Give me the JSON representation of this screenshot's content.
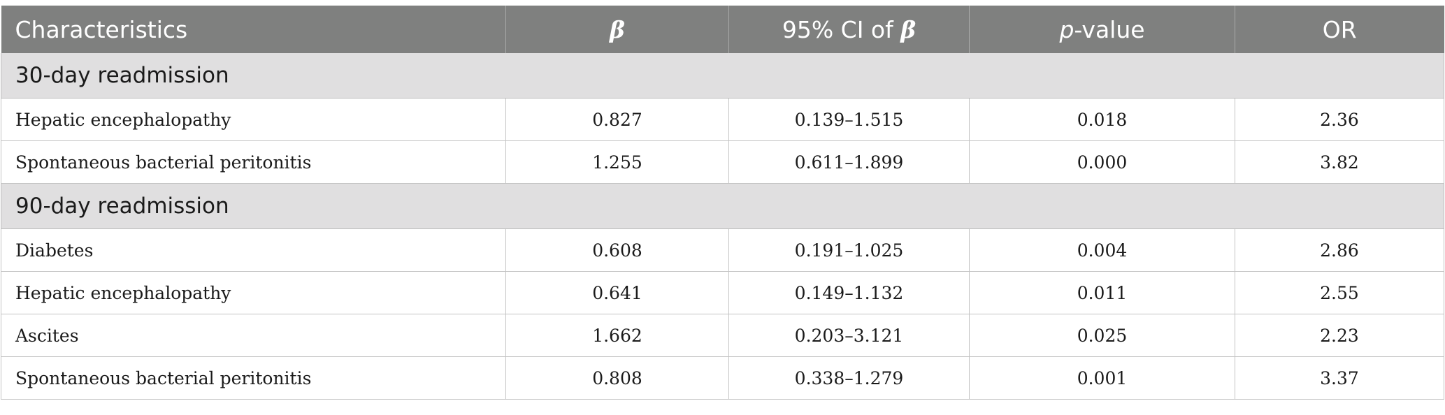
{
  "header": {
    "characteristics": "Characteristics",
    "beta_symbol": "β",
    "ci_prefix": "95% CI of ",
    "ci_symbol": "β",
    "p_italic": "p",
    "p_suffix": "-value",
    "or": "OR"
  },
  "sections": [
    {
      "title": "30-day readmission",
      "rows": [
        {
          "label": "Hepatic encephalopathy",
          "beta": "0.827",
          "ci": "0.139–1.515",
          "p": "0.018",
          "or": "2.36"
        },
        {
          "label": "Spontaneous bacterial peritonitis",
          "beta": "1.255",
          "ci": "0.611–1.899",
          "p": "0.000",
          "or": "3.82"
        }
      ]
    },
    {
      "title": "90-day readmission",
      "rows": [
        {
          "label": "Diabetes",
          "beta": "0.608",
          "ci": "0.191–1.025",
          "p": "0.004",
          "or": "2.86"
        },
        {
          "label": "Hepatic encephalopathy",
          "beta": "0.641",
          "ci": "0.149–1.132",
          "p": "0.011",
          "or": "2.55"
        },
        {
          "label": "Ascites",
          "beta": "1.662",
          "ci": "0.203–3.121",
          "p": "0.025",
          "or": "2.23"
        },
        {
          "label": "Spontaneous bacterial peritonitis",
          "beta": "0.808",
          "ci": "0.338–1.279",
          "p": "0.001",
          "or": "3.37"
        }
      ]
    }
  ]
}
